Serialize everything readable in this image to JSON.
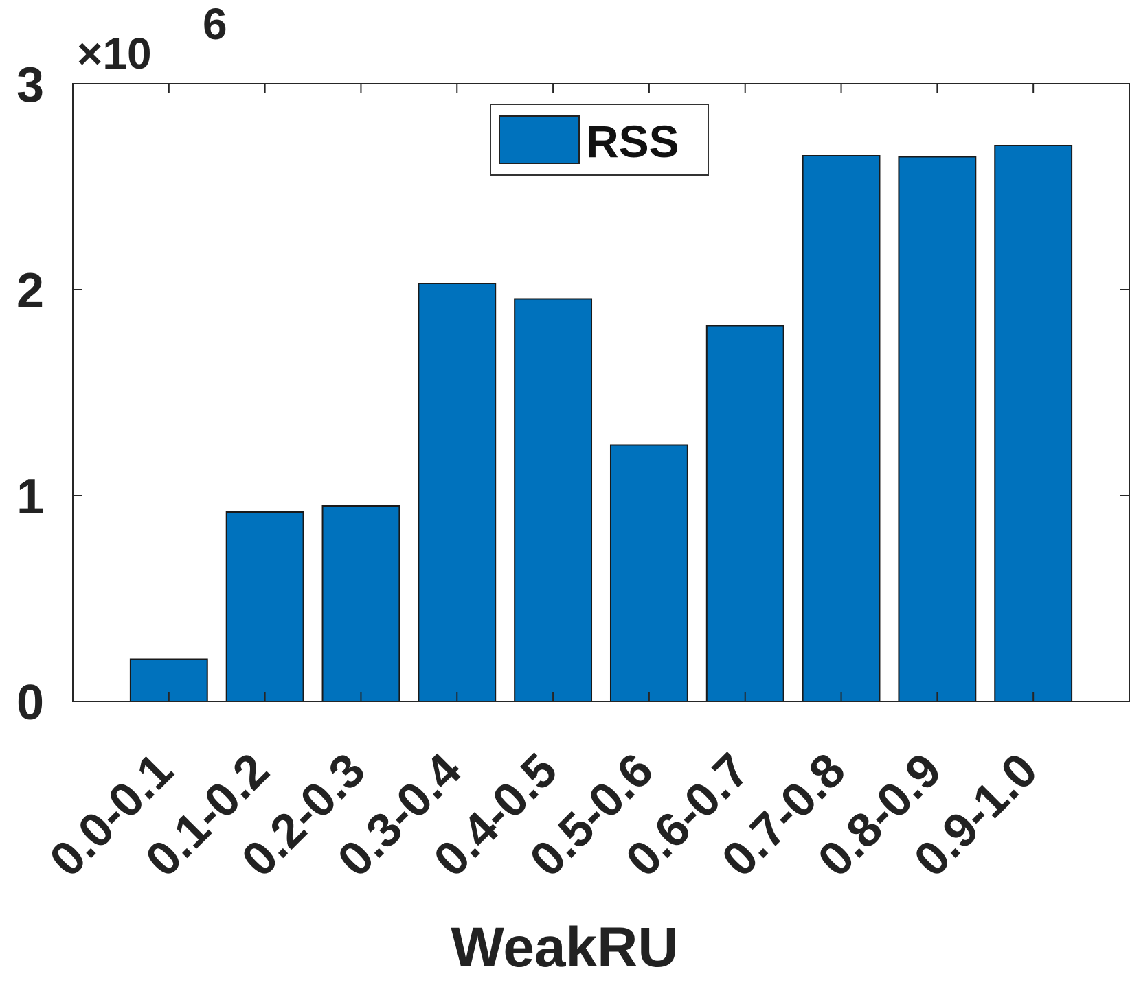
{
  "chart_data": {
    "type": "bar",
    "title": "",
    "xlabel": "WeakRU",
    "ylabel": "",
    "y_exponent_label": "×10",
    "y_exponent_power": "6",
    "y_scale_factor": 1000000,
    "ylim": [
      0,
      3000000
    ],
    "yticks": [
      0,
      1000000,
      2000000,
      3000000
    ],
    "ytick_labels": [
      "0",
      "1",
      "2",
      "3"
    ],
    "categories": [
      "0.0-0.1",
      "0.1-0.2",
      "0.2-0.3",
      "0.3-0.4",
      "0.4-0.5",
      "0.5-0.6",
      "0.6-0.7",
      "0.7-0.8",
      "0.8-0.9",
      "0.9-1.0"
    ],
    "series": [
      {
        "name": "RSS",
        "color": "#0072BD",
        "values": [
          205000,
          920000,
          950000,
          2030000,
          1955000,
          1245000,
          1825000,
          2650000,
          2645000,
          2700000
        ]
      }
    ],
    "grid": false,
    "legend": {
      "position": "top-center",
      "entries": [
        "RSS"
      ]
    }
  }
}
